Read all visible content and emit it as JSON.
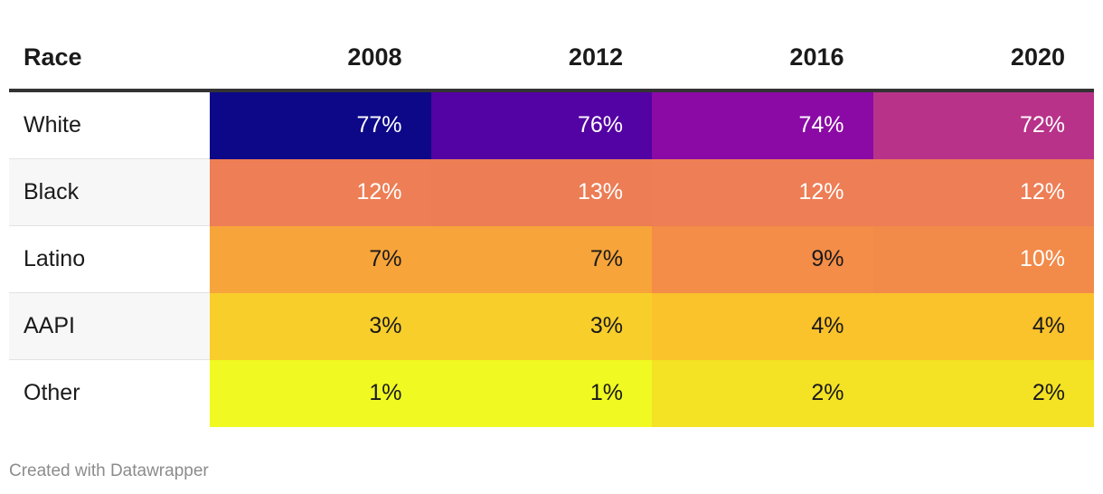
{
  "chart_data": {
    "type": "heatmap",
    "columns": [
      "Race",
      "2008",
      "2012",
      "2016",
      "2020"
    ],
    "rows": [
      {
        "race": "White",
        "values": [
          77,
          76,
          74,
          72
        ],
        "labels": [
          "77%",
          "76%",
          "74%",
          "72%"
        ],
        "colors": [
          "#0d0887",
          "#5302a3",
          "#8b0aa5",
          "#b83289"
        ],
        "text_colors": [
          "#ffffff",
          "#ffffff",
          "#ffffff",
          "#ffffff"
        ]
      },
      {
        "race": "Black",
        "values": [
          12,
          13,
          12,
          12
        ],
        "labels": [
          "12%",
          "13%",
          "12%",
          "12%"
        ],
        "colors": [
          "#ee7e55",
          "#ec7d55",
          "#ee7e55",
          "#ee7e55"
        ],
        "text_colors": [
          "#ffffff",
          "#ffffff",
          "#ffffff",
          "#ffffff"
        ]
      },
      {
        "race": "Latino",
        "values": [
          7,
          7,
          9,
          10
        ],
        "labels": [
          "7%",
          "7%",
          "9%",
          "10%"
        ],
        "colors": [
          "#f7a43a",
          "#f7a43a",
          "#f38d48",
          "#f28a4a"
        ],
        "text_colors": [
          "#1a1a1a",
          "#1a1a1a",
          "#1a1a1a",
          "#ffffff"
        ]
      },
      {
        "race": "AAPI",
        "values": [
          3,
          3,
          4,
          4
        ],
        "labels": [
          "3%",
          "3%",
          "4%",
          "4%"
        ],
        "colors": [
          "#f8ce2b",
          "#f8ce2b",
          "#fac22b",
          "#fac22b"
        ],
        "text_colors": [
          "#1a1a1a",
          "#1a1a1a",
          "#1a1a1a",
          "#1a1a1a"
        ]
      },
      {
        "race": "Other",
        "values": [
          1,
          1,
          2,
          2
        ],
        "labels": [
          "1%",
          "1%",
          "2%",
          "2%"
        ],
        "colors": [
          "#f0f921",
          "#f0f921",
          "#f4e224",
          "#f4e224"
        ],
        "text_colors": [
          "#1a1a1a",
          "#1a1a1a",
          "#1a1a1a",
          "#1a1a1a"
        ]
      }
    ]
  },
  "footer": "Created with Datawrapper"
}
